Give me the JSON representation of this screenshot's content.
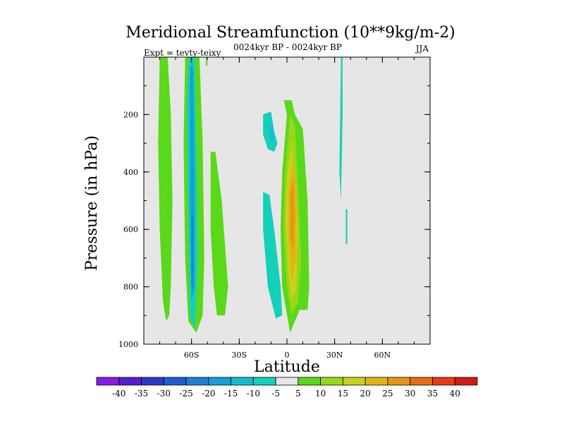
{
  "chart_data": {
    "type": "heatmap",
    "title": "Meridional Streamfunction (10**9kg/m-2)",
    "subtitle_left": "Expt = tevty-teixy",
    "subtitle_center": "0024kyr BP - 0024kyr BP",
    "subtitle_right": "JJA",
    "xlabel": "Latitude",
    "ylabel": "Pressure (in hPa)",
    "xlim": [
      -90,
      90
    ],
    "ylim": [
      0,
      1000
    ],
    "x_ticks": [
      {
        "value": -60,
        "label": "60S"
      },
      {
        "value": -30,
        "label": "30S"
      },
      {
        "value": 0,
        "label": "0"
      },
      {
        "value": 30,
        "label": "30N"
      },
      {
        "value": 60,
        "label": "60N"
      }
    ],
    "y_ticks": [
      {
        "value": 200,
        "label": "200"
      },
      {
        "value": 400,
        "label": "400"
      },
      {
        "value": 600,
        "label": "600"
      },
      {
        "value": 800,
        "label": "800"
      },
      {
        "value": 1000,
        "label": "1000"
      }
    ],
    "background_color": "#e6e6e6",
    "contour_levels": [
      -40,
      -35,
      -30,
      -25,
      -20,
      -15,
      -10,
      -5,
      5,
      10,
      15,
      20,
      25,
      30,
      35,
      40
    ],
    "level_colors": [
      "#8c1ae6",
      "#5a1ccf",
      "#2e38c8",
      "#1f5cd2",
      "#1f80d8",
      "#16a0d8",
      "#14bcd0",
      "#14d0b8",
      "#e6e6e6",
      "#5ad81a",
      "#96d81a",
      "#c8d21a",
      "#e0b614",
      "#e69614",
      "#e66c14",
      "#e63c14",
      "#d21a14"
    ],
    "regions": [
      {
        "level_index": 9,
        "points": [
          [
            -80,
            0
          ],
          [
            -75,
            0
          ],
          [
            -73,
            200
          ],
          [
            -72,
            500
          ],
          [
            -73,
            800
          ],
          [
            -74,
            900
          ],
          [
            -76,
            920
          ],
          [
            -78,
            850
          ],
          [
            -80,
            600
          ],
          [
            -81,
            300
          ]
        ]
      },
      {
        "level_index": 9,
        "points": [
          [
            -64,
            0
          ],
          [
            -55,
            0
          ],
          [
            -53,
            300
          ],
          [
            -52,
            700
          ],
          [
            -53,
            900
          ],
          [
            -57,
            960
          ],
          [
            -62,
            920
          ],
          [
            -64,
            700
          ],
          [
            -65,
            300
          ]
        ]
      },
      {
        "level_index": 7,
        "points": [
          [
            -62,
            0
          ],
          [
            -58,
            0
          ],
          [
            -57,
            300
          ],
          [
            -56,
            700
          ],
          [
            -58,
            950
          ],
          [
            -61,
            900
          ],
          [
            -62,
            600
          ],
          [
            -63,
            200
          ]
        ]
      },
      {
        "level_index": 5,
        "points": [
          [
            -61,
            30
          ],
          [
            -59,
            30
          ],
          [
            -58,
            400
          ],
          [
            -58,
            800
          ],
          [
            -60,
            850
          ],
          [
            -61,
            500
          ]
        ]
      },
      {
        "level_index": 4,
        "points": [
          [
            -60,
            550
          ],
          [
            -59,
            550
          ],
          [
            -59,
            800
          ],
          [
            -60,
            800
          ]
        ]
      },
      {
        "level_index": 9,
        "points": [
          [
            -51,
            0
          ],
          [
            -50,
            0
          ],
          [
            -50,
            30
          ],
          [
            -51,
            30
          ]
        ]
      },
      {
        "level_index": 9,
        "points": [
          [
            -48,
            330
          ],
          [
            -45,
            330
          ],
          [
            -41,
            500
          ],
          [
            -37,
            800
          ],
          [
            -39,
            900
          ],
          [
            -44,
            900
          ],
          [
            -46,
            800
          ],
          [
            -48,
            600
          ]
        ]
      },
      {
        "level_index": 7,
        "points": [
          [
            -15,
            200
          ],
          [
            -10,
            190
          ],
          [
            -8,
            260
          ],
          [
            -6,
            300
          ],
          [
            -8,
            330
          ],
          [
            -12,
            320
          ],
          [
            -15,
            270
          ]
        ]
      },
      {
        "level_index": 6,
        "points": [
          [
            -11,
            240
          ],
          [
            -9,
            240
          ],
          [
            -8,
            290
          ],
          [
            -11,
            290
          ]
        ]
      },
      {
        "level_index": 7,
        "points": [
          [
            -15,
            470
          ],
          [
            -11,
            480
          ],
          [
            -8,
            600
          ],
          [
            -4,
            800
          ],
          [
            -3,
            900
          ],
          [
            -7,
            910
          ],
          [
            -12,
            800
          ],
          [
            -15,
            600
          ]
        ]
      },
      {
        "level_index": 9,
        "points": [
          [
            -2,
            150
          ],
          [
            3,
            150
          ],
          [
            5,
            200
          ],
          [
            10,
            250
          ],
          [
            13,
            500
          ],
          [
            14,
            800
          ],
          [
            13,
            880
          ],
          [
            8,
            880
          ],
          [
            2,
            960
          ],
          [
            -3,
            800
          ],
          [
            -4,
            600
          ],
          [
            -3,
            400
          ],
          [
            0,
            200
          ]
        ]
      },
      {
        "level_index": 10,
        "points": [
          [
            -1,
            400
          ],
          [
            2,
            200
          ],
          [
            5,
            240
          ],
          [
            7,
            450
          ],
          [
            9,
            700
          ],
          [
            7,
            850
          ],
          [
            3,
            900
          ],
          [
            0,
            800
          ],
          [
            -2,
            600
          ]
        ]
      },
      {
        "level_index": 11,
        "points": [
          [
            0,
            420
          ],
          [
            3,
            300
          ],
          [
            5,
            400
          ],
          [
            7,
            600
          ],
          [
            6,
            800
          ],
          [
            3,
            850
          ],
          [
            1,
            760
          ],
          [
            -1,
            560
          ]
        ]
      },
      {
        "level_index": 12,
        "points": [
          [
            1,
            460
          ],
          [
            4,
            350
          ],
          [
            6,
            480
          ],
          [
            6,
            700
          ],
          [
            3,
            780
          ],
          [
            1,
            650
          ]
        ]
      },
      {
        "level_index": 13,
        "points": [
          [
            2,
            480
          ],
          [
            4,
            420
          ],
          [
            5,
            560
          ],
          [
            4,
            680
          ],
          [
            2,
            620
          ]
        ]
      },
      {
        "level_index": 7,
        "points": [
          [
            34,
            0
          ],
          [
            35,
            0
          ],
          [
            35,
            200
          ],
          [
            34,
            500
          ],
          [
            33,
            400
          ]
        ]
      },
      {
        "level_index": 7,
        "points": [
          [
            37,
            530
          ],
          [
            38,
            530
          ],
          [
            38,
            650
          ],
          [
            37,
            650
          ]
        ]
      }
    ]
  }
}
